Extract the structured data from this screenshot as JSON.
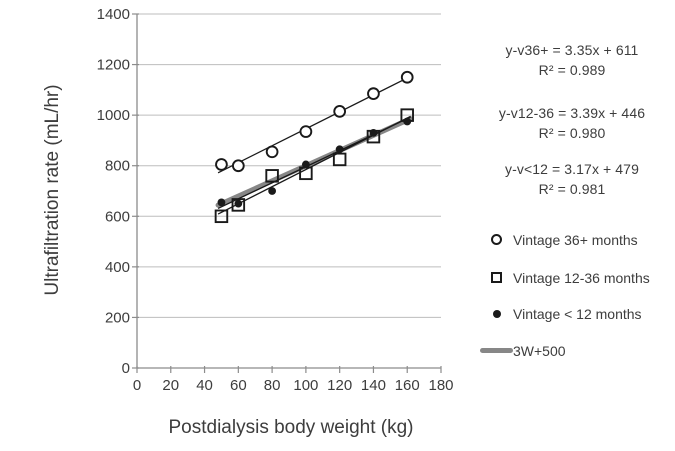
{
  "chart_data": {
    "type": "scatter",
    "title": "",
    "xlabel": "Postdialysis body weight (kg)",
    "ylabel": "Ultrafiltration rate (mL/hr)",
    "xlim": [
      0,
      180
    ],
    "ylim": [
      0,
      1400
    ],
    "xticks": [
      0,
      20,
      40,
      60,
      80,
      100,
      120,
      140,
      160,
      180
    ],
    "yticks": [
      0,
      200,
      400,
      600,
      800,
      1000,
      1200,
      1400
    ],
    "grid": "horizontal",
    "legend_position": "right",
    "x": [
      50,
      60,
      80,
      100,
      120,
      140,
      160
    ],
    "series": [
      {
        "name": "Vintage 36+ months",
        "marker": "open-circle",
        "values": [
          805,
          800,
          855,
          935,
          1015,
          1085,
          1150
        ],
        "trendline": {
          "slope": 3.35,
          "intercept": 611,
          "r2": 0.989
        }
      },
      {
        "name": "Vintage 12-36 months",
        "marker": "open-square",
        "values": [
          600,
          645,
          760,
          770,
          825,
          915,
          1000
        ],
        "trendline": {
          "slope": 3.39,
          "intercept": 446,
          "r2": 0.98
        }
      },
      {
        "name": "Vintage < 12 months",
        "marker": "filled-dot",
        "values": [
          655,
          650,
          700,
          805,
          865,
          930,
          975
        ],
        "trendline": {
          "slope": 3.17,
          "intercept": 479,
          "r2": 0.981
        }
      }
    ],
    "reference_line": {
      "name": "3W+500",
      "slope": 3,
      "intercept": 500
    },
    "trend_x_range": [
      48,
      162
    ]
  },
  "equations": [
    {
      "line1": "y-v36+ = 3.35x + 611",
      "line2": "R² = 0.989"
    },
    {
      "line1": "y-v12-36 = 3.39x + 446",
      "line2": "R² = 0.980"
    },
    {
      "line1": "y-v<12 = 3.17x + 479",
      "line2": "R² = 0.981"
    }
  ],
  "legend": {
    "items": [
      {
        "label": "Vintage 36+ months",
        "marker": "open-circle"
      },
      {
        "label": "Vintage 12-36 months",
        "marker": "open-square"
      },
      {
        "label": "Vintage < 12 months",
        "marker": "filled-dot"
      },
      {
        "label": "3W+500",
        "marker": "gray-line"
      }
    ]
  },
  "colors": {
    "marker": "#1a1a1a",
    "trendline": "#1a1a1a",
    "reference": "#878787",
    "grid": "#bdbdbd",
    "axis": "#8c8c8c",
    "text": "#3d3d3d"
  }
}
